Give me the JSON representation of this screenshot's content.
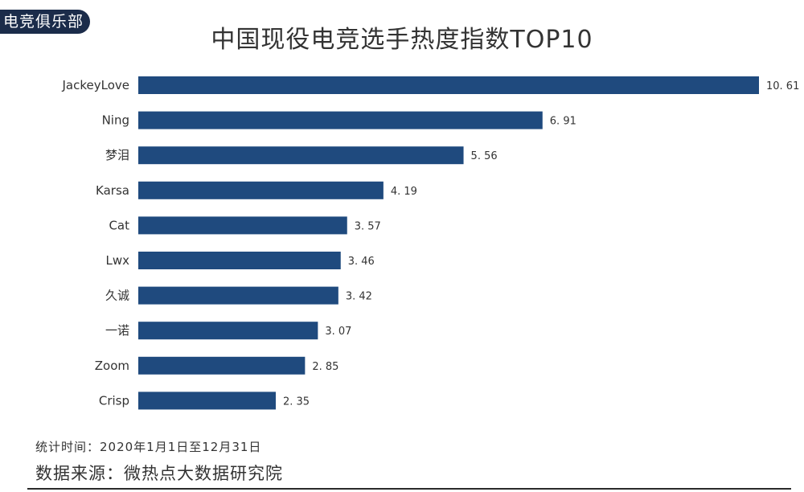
{
  "badge": "电竞俱乐部",
  "chart_data": {
    "type": "bar",
    "orientation": "horizontal",
    "title": "中国现役电竞选手热度指数TOP10",
    "categories": [
      "JackeyLove",
      "Ning",
      "梦泪",
      "Karsa",
      "Cat",
      "Lwx",
      "久诚",
      "一诺",
      "Zoom",
      "Crisp"
    ],
    "values": [
      10.61,
      6.91,
      5.56,
      4.19,
      3.57,
      3.46,
      3.42,
      3.07,
      2.85,
      2.35
    ],
    "value_labels": [
      "10. 61",
      "6. 91",
      "5. 56",
      "4. 19",
      "3. 57",
      "3. 46",
      "3. 42",
      "3. 07",
      "2. 85",
      "2. 35"
    ],
    "xlim": [
      0,
      10.61
    ],
    "bar_color": "#1f4a7e",
    "grid": false
  },
  "footer": {
    "period": "统计时间：2020年1月1日至12月31日",
    "source": "数据来源：微热点大数据研究院"
  }
}
